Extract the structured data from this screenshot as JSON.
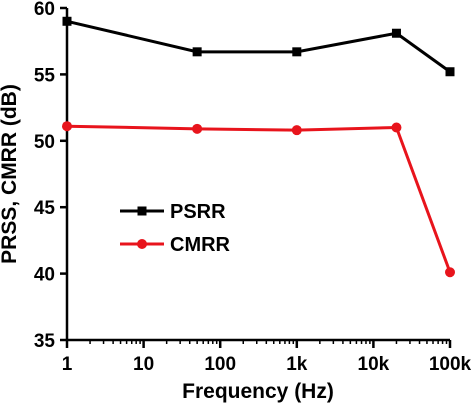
{
  "chart_data": {
    "type": "line",
    "xlabel": "Frequency  (Hz)",
    "ylabel": "PRSS, CMRR  (dB)",
    "x_scale": "log",
    "xlim": [
      1,
      100000
    ],
    "ylim": [
      35,
      60
    ],
    "x_ticks": [
      {
        "value": 1,
        "label": "1"
      },
      {
        "value": 10,
        "label": "10"
      },
      {
        "value": 100,
        "label": "100"
      },
      {
        "value": 1000,
        "label": "1k"
      },
      {
        "value": 10000,
        "label": "10k"
      },
      {
        "value": 100000,
        "label": "100k"
      }
    ],
    "y_ticks": [
      {
        "value": 35,
        "label": "35"
      },
      {
        "value": 40,
        "label": "40"
      },
      {
        "value": 45,
        "label": "45"
      },
      {
        "value": 50,
        "label": "50"
      },
      {
        "value": 55,
        "label": "55"
      },
      {
        "value": 60,
        "label": "60"
      }
    ],
    "grid": false,
    "legend_position": "center-left",
    "series": [
      {
        "name": "PSRR",
        "color": "#000000",
        "marker": "square",
        "points": [
          {
            "x": 1,
            "y": 59.0
          },
          {
            "x": 50,
            "y": 56.7
          },
          {
            "x": 1000,
            "y": 56.7
          },
          {
            "x": 20000,
            "y": 58.1
          },
          {
            "x": 100000,
            "y": 55.2
          }
        ]
      },
      {
        "name": "CMRR",
        "color": "#e8141c",
        "marker": "circle",
        "points": [
          {
            "x": 1,
            "y": 51.1
          },
          {
            "x": 50,
            "y": 50.9
          },
          {
            "x": 1000,
            "y": 50.8
          },
          {
            "x": 20000,
            "y": 51.0
          },
          {
            "x": 100000,
            "y": 40.1
          }
        ]
      }
    ]
  }
}
